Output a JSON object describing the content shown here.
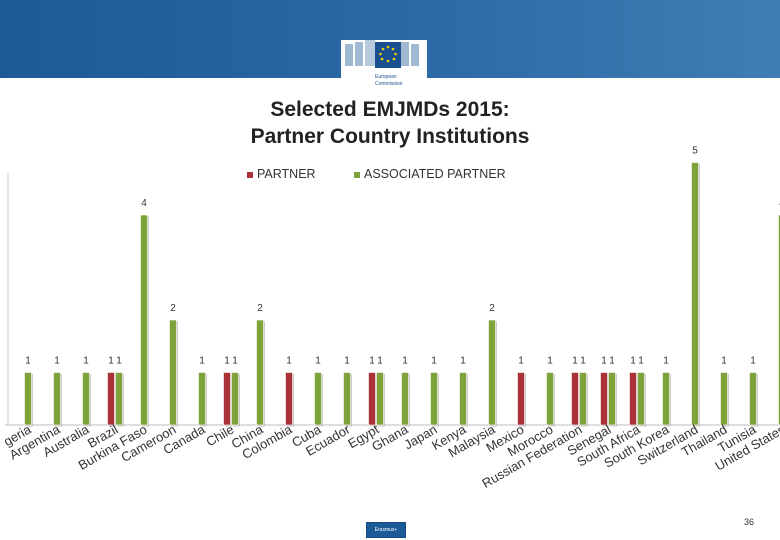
{
  "header": {
    "logo_line1": "European",
    "logo_line2": "Commission"
  },
  "footer": {
    "page_number": "36",
    "logo_text": "Erasmus+"
  },
  "colors": {
    "partner": "#a83236",
    "associated": "#7ea33b",
    "band": "#1c5a97"
  },
  "chart_data": {
    "type": "bar",
    "title_line1": "Selected EMJMDs 2015:",
    "title_line2": "Partner Country Institutions",
    "legend_position": "top",
    "ylim": [
      0,
      5
    ],
    "categories": [
      "Algeria",
      "Argentina",
      "Australia",
      "Brazil",
      "Burkina Faso",
      "Cameroon",
      "Canada",
      "Chile",
      "China",
      "Colombia",
      "Cuba",
      "Ecuador",
      "Egypt",
      "Ghana",
      "Japan",
      "Kenya",
      "Malaysia",
      "Mexico",
      "Morocco",
      "Russian Federation",
      "Senegal",
      "South Africa",
      "South Korea",
      "Switzerland",
      "Thailand",
      "Tunisia",
      "United States"
    ],
    "category_labels_visible": [
      "geria",
      "Argentina",
      "Australia",
      "Brazil",
      "Burkina Faso",
      "Cameroon",
      "Canada",
      "Chile",
      "China",
      "Colombia",
      "Cuba",
      "Ecuador",
      "Egypt",
      "Ghana",
      "Japan",
      "Kenya",
      "Malaysia",
      "Mexico",
      "Morocco",
      "Russian Federation",
      "Senegal",
      "South Africa",
      "South Korea",
      "Switzerland",
      "Thailand",
      "Tunisia",
      "United States"
    ],
    "series": [
      {
        "name": "PARTNER",
        "values": [
          null,
          null,
          null,
          1,
          null,
          null,
          null,
          1,
          null,
          1,
          null,
          null,
          1,
          null,
          null,
          null,
          null,
          1,
          null,
          1,
          1,
          1,
          null,
          null,
          null,
          null,
          null
        ]
      },
      {
        "name": "ASSOCIATED PARTNER",
        "values": [
          1,
          1,
          1,
          1,
          4,
          2,
          1,
          1,
          2,
          null,
          1,
          1,
          1,
          1,
          1,
          1,
          2,
          null,
          1,
          1,
          1,
          1,
          1,
          5,
          1,
          1,
          4
        ]
      }
    ]
  }
}
